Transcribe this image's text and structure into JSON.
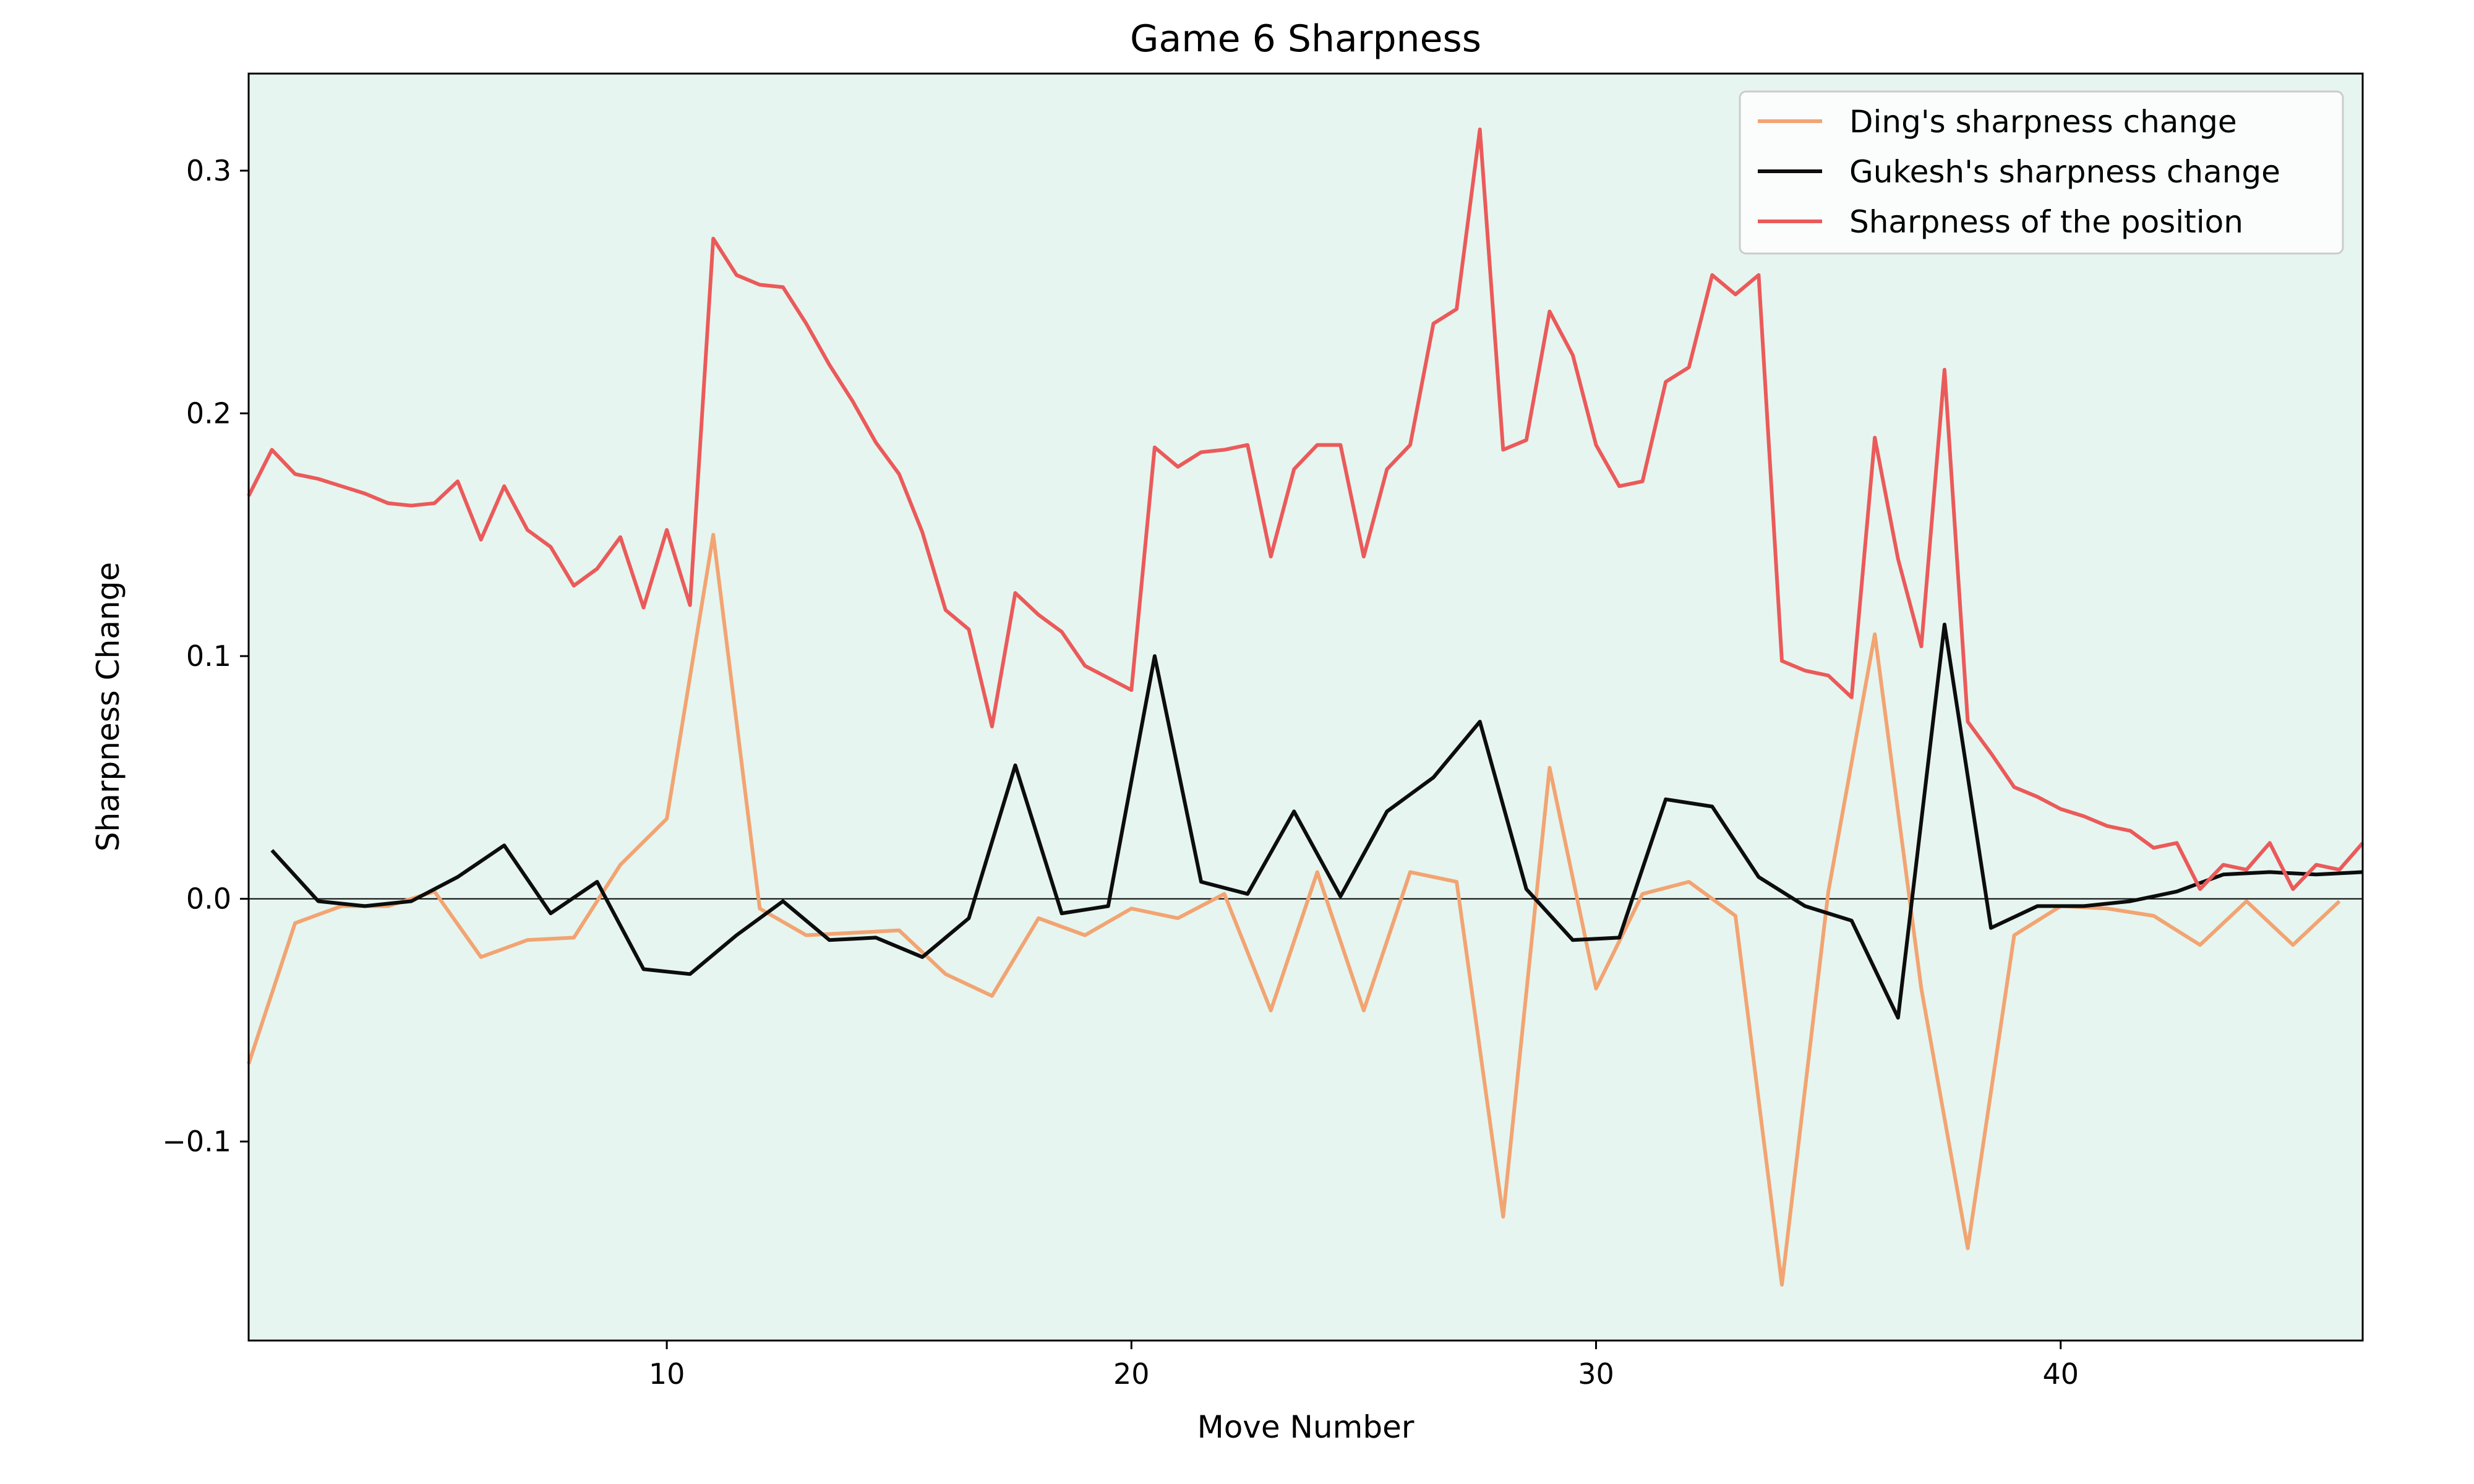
{
  "chart_data": {
    "type": "line",
    "title": "Game 6 Sharpness",
    "xlabel": "Move Number",
    "ylabel": "Sharpness Change",
    "xlim": [
      1,
      46.5
    ],
    "ylim": [
      -0.182,
      0.34
    ],
    "xticks": [
      10,
      20,
      30,
      40
    ],
    "yticks": [
      -0.1,
      0.0,
      0.1,
      0.2,
      0.3
    ],
    "ytick_labels": [
      "−0.1",
      "0.0",
      "0.1",
      "0.2",
      "0.3"
    ],
    "grid": false,
    "zero_line": true,
    "legend_position": "top-right",
    "background_color": "#e6f5ef",
    "series": [
      {
        "name": "Ding's sharpness change",
        "color": "#f2a472",
        "x": [
          1,
          2,
          3,
          4,
          5,
          6,
          7,
          8,
          9,
          10,
          11,
          12,
          13,
          14,
          15,
          16,
          17,
          18,
          19,
          20,
          21,
          22,
          23,
          24,
          25,
          26,
          27,
          28,
          29,
          30,
          31,
          32,
          33,
          34,
          35,
          36,
          37,
          38,
          39,
          40,
          41,
          42,
          43,
          44,
          45,
          46
        ],
        "y": [
          -0.068,
          -0.01,
          -0.003,
          -0.003,
          0.003,
          -0.024,
          -0.017,
          -0.016,
          0.014,
          0.033,
          0.15,
          -0.004,
          -0.015,
          -0.014,
          -0.013,
          -0.031,
          -0.04,
          -0.008,
          -0.015,
          -0.004,
          -0.008,
          0.002,
          -0.046,
          0.011,
          -0.046,
          0.011,
          0.007,
          -0.131,
          0.054,
          -0.037,
          0.002,
          0.007,
          -0.007,
          -0.159,
          0.003,
          0.109,
          -0.037,
          -0.144,
          -0.015,
          -0.003,
          -0.004,
          -0.007,
          -0.019,
          -0.001,
          -0.019,
          -0.001
        ]
      },
      {
        "name": "Gukesh's sharpness change",
        "color": "#0d0d0d",
        "x": [
          1.5,
          2.5,
          3.5,
          4.5,
          5.5,
          6.5,
          7.5,
          8.5,
          9.5,
          10.5,
          11.5,
          12.5,
          13.5,
          14.5,
          15.5,
          16.5,
          17.5,
          18.5,
          19.5,
          20.5,
          21.5,
          22.5,
          23.5,
          24.5,
          25.5,
          26.5,
          27.5,
          28.5,
          29.5,
          30.5,
          31.5,
          32.5,
          33.5,
          34.5,
          35.5,
          36.5,
          37.5,
          38.5,
          39.5,
          40.5,
          41.5,
          42.5,
          43.5,
          44.5,
          45.5,
          46.5
        ],
        "y": [
          0.02,
          -0.001,
          -0.003,
          -0.001,
          0.009,
          0.022,
          -0.006,
          0.007,
          -0.029,
          -0.031,
          -0.015,
          -0.001,
          -0.017,
          -0.016,
          -0.024,
          -0.008,
          0.055,
          -0.006,
          -0.003,
          0.1,
          0.007,
          0.002,
          0.036,
          0.001,
          0.036,
          0.05,
          0.073,
          0.004,
          -0.017,
          -0.016,
          0.041,
          0.038,
          0.009,
          -0.003,
          -0.009,
          -0.049,
          0.113,
          -0.012,
          -0.003,
          -0.003,
          -0.001,
          0.003,
          0.01,
          0.011,
          0.01,
          0.011
        ]
      },
      {
        "name": "Sharpness of the position",
        "color": "#eb5a5a",
        "x": [
          1,
          1.5,
          2,
          2.5,
          3,
          3.5,
          4,
          4.5,
          5,
          5.5,
          6,
          6.5,
          7,
          7.5,
          8,
          8.5,
          9,
          9.5,
          10,
          10.5,
          11,
          11.5,
          12,
          12.5,
          13,
          13.5,
          14,
          14.5,
          15,
          15.5,
          16,
          16.5,
          17,
          17.5,
          18,
          18.5,
          19,
          19.5,
          20,
          20.5,
          21,
          21.5,
          22,
          22.5,
          23,
          23.5,
          24,
          24.5,
          25,
          25.5,
          26,
          26.5,
          27,
          27.5,
          28,
          28.5,
          29,
          29.5,
          30,
          30.5,
          31,
          31.5,
          32,
          32.5,
          33,
          33.5,
          34,
          34.5,
          35,
          35.5,
          36,
          36.5,
          37,
          37.5,
          38,
          38.5,
          39,
          39.5,
          40,
          40.5,
          41,
          41.5,
          42,
          42.5,
          43,
          43.5,
          44,
          44.5,
          45,
          45.5,
          46,
          46.5
        ],
        "y": [
          0.166,
          0.185,
          0.175,
          0.173,
          0.17,
          0.167,
          0.163,
          0.162,
          0.163,
          0.172,
          0.148,
          0.17,
          0.152,
          0.145,
          0.129,
          0.136,
          0.149,
          0.12,
          0.152,
          0.121,
          0.272,
          0.257,
          0.253,
          0.252,
          0.237,
          0.22,
          0.205,
          0.188,
          0.175,
          0.151,
          0.119,
          0.111,
          0.071,
          0.126,
          0.117,
          0.11,
          0.096,
          0.091,
          0.086,
          0.186,
          0.178,
          0.184,
          0.185,
          0.187,
          0.141,
          0.177,
          0.187,
          0.187,
          0.141,
          0.177,
          0.187,
          0.237,
          0.243,
          0.317,
          0.185,
          0.189,
          0.242,
          0.224,
          0.187,
          0.17,
          0.172,
          0.213,
          0.219,
          0.257,
          0.249,
          0.257,
          0.098,
          0.094,
          0.092,
          0.083,
          0.19,
          0.14,
          0.104,
          0.218,
          0.073,
          0.06,
          0.046,
          0.042,
          0.037,
          0.034,
          0.03,
          0.028,
          0.021,
          0.023,
          0.004,
          0.014,
          0.012,
          0.023,
          0.004,
          0.014,
          0.012,
          0.023
        ]
      }
    ]
  }
}
